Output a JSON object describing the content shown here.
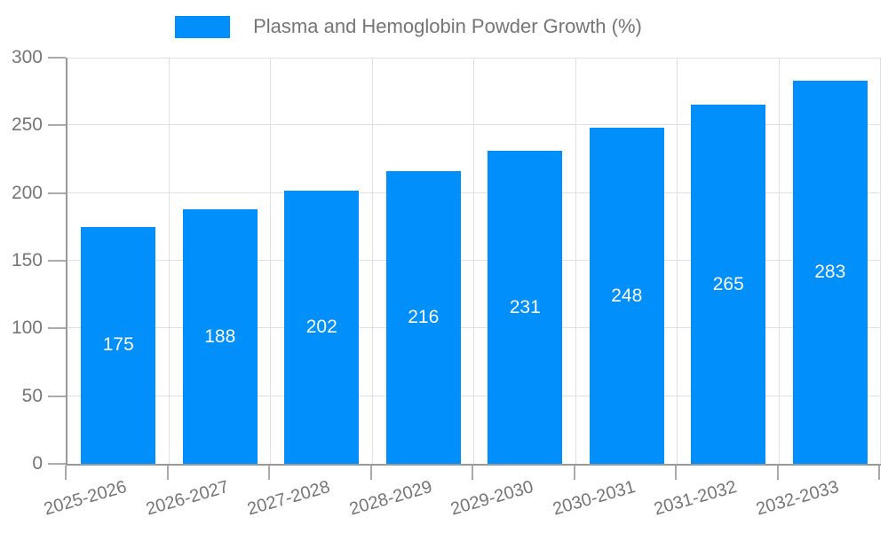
{
  "chart_data": {
    "type": "bar",
    "title": "Plasma and Hemoglobin Powder Growth (%)",
    "legend_label": "Plasma and Hemoglobin Powder Growth (%)",
    "legend_position": "top",
    "categories": [
      "2025-2026",
      "2026-2027",
      "2027-2028",
      "2028-2029",
      "2029-2030",
      "2030-2031",
      "2031-2032",
      "2032-2033"
    ],
    "values": [
      175,
      188,
      202,
      216,
      231,
      248,
      265,
      283
    ],
    "xlabel": "",
    "ylabel": "",
    "ylim": [
      0,
      300
    ],
    "yticks": [
      0,
      50,
      100,
      150,
      200,
      250,
      300
    ],
    "grid": true,
    "x_label_rotation_deg": -16,
    "colors": {
      "bar": "#008FFB",
      "value_label": "#FFFFFF",
      "grid": "#E0E0E0",
      "axis": "#999999",
      "tick_mark": "#AAAAAA",
      "text": "#757575"
    }
  }
}
